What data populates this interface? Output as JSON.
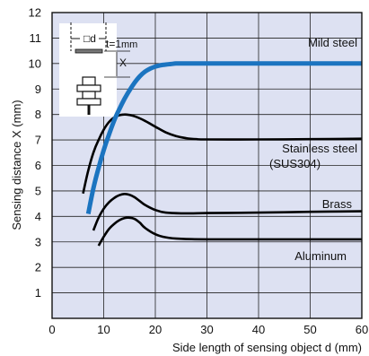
{
  "chart_data": {
    "type": "line",
    "xlabel": "Side length of sensing object d (mm)",
    "ylabel": "Sensing distance X (mm)",
    "xlim": [
      0,
      60
    ],
    "ylim": [
      0,
      12
    ],
    "x_ticks": [
      "0",
      "10",
      "20",
      "30",
      "40",
      "50",
      "60"
    ],
    "y_ticks": [
      "1",
      "2",
      "3",
      "4",
      "5",
      "6",
      "7",
      "8",
      "9",
      "10",
      "11",
      "12"
    ],
    "grid": true,
    "background_color": "#dde1f2",
    "grid_color": "#222222",
    "series": [
      {
        "name": "Mild steel",
        "label_lines": [
          "Mild steel"
        ],
        "color": "#1b74c0",
        "x": [
          7.0,
          8.0,
          9.0,
          10.0,
          11.0,
          12.0,
          13.0,
          14.0,
          15.0,
          16.0,
          17.0,
          18.0,
          19.0,
          20.0,
          21.0,
          22.0,
          23.0,
          24.0,
          25.0,
          30.0,
          40.0,
          50.0,
          60.0
        ],
        "y": [
          4.1,
          5.1,
          5.9,
          6.6,
          7.2,
          7.75,
          8.2,
          8.6,
          8.95,
          9.25,
          9.5,
          9.68,
          9.8,
          9.88,
          9.93,
          9.96,
          9.98,
          10.0,
          10.0,
          10.0,
          10.0,
          10.0,
          10.0
        ]
      },
      {
        "name": "Stainless steel (SUS304)",
        "label_lines": [
          "Stainless steel",
          "(SUS304)"
        ],
        "color": "#000000",
        "x": [
          6.0,
          7.0,
          8.0,
          9.0,
          10.0,
          11.0,
          12.0,
          13.0,
          14.0,
          15.0,
          16.0,
          18.0,
          20.0,
          22.0,
          24.0,
          26.0,
          28.0,
          30.0,
          40.0,
          50.0,
          60.0
        ],
        "y": [
          4.9,
          5.8,
          6.5,
          7.0,
          7.4,
          7.7,
          7.88,
          7.97,
          8.0,
          7.98,
          7.93,
          7.75,
          7.52,
          7.3,
          7.15,
          7.07,
          7.03,
          7.02,
          7.02,
          7.03,
          7.05
        ]
      },
      {
        "name": "Brass",
        "label_lines": [
          "Brass"
        ],
        "color": "#000000",
        "x": [
          8.0,
          9.0,
          10.0,
          11.0,
          12.0,
          13.0,
          14.0,
          15.0,
          16.0,
          17.0,
          18.0,
          20.0,
          22.0,
          25.0,
          30.0,
          40.0,
          50.0,
          60.0
        ],
        "y": [
          3.45,
          3.95,
          4.3,
          4.55,
          4.72,
          4.83,
          4.88,
          4.85,
          4.75,
          4.6,
          4.45,
          4.25,
          4.15,
          4.12,
          4.13,
          4.15,
          4.18,
          4.2
        ],
        "label_note": "Brass"
      },
      {
        "name": "Aluminum",
        "label_lines": [
          "Aluminum"
        ],
        "color": "#000000",
        "x": [
          9.0,
          10.0,
          11.0,
          12.0,
          13.0,
          14.0,
          15.0,
          16.0,
          17.0,
          18.0,
          20.0,
          22.0,
          25.0,
          30.0,
          40.0,
          50.0,
          60.0
        ],
        "y": [
          2.85,
          3.2,
          3.5,
          3.7,
          3.85,
          3.93,
          3.95,
          3.9,
          3.75,
          3.55,
          3.3,
          3.18,
          3.12,
          3.1,
          3.1,
          3.1,
          3.1
        ]
      }
    ],
    "inset": {
      "object_label": "□d",
      "thickness_label_t": "t=1",
      "thickness_label_unit": "mm",
      "distance_label": "X"
    }
  }
}
